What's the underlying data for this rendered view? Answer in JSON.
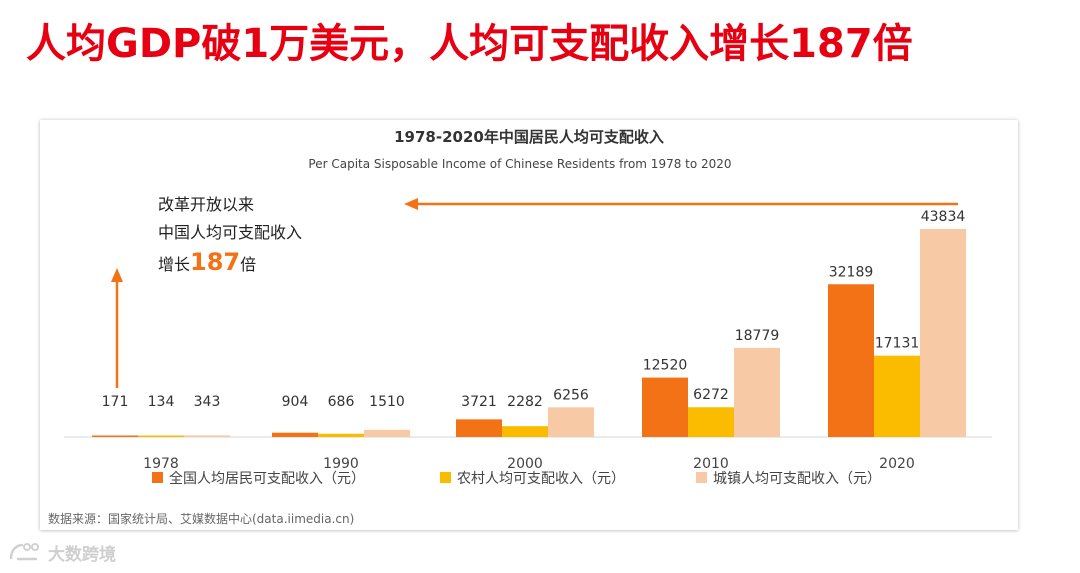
{
  "headline": "人均GDP破1万美元，人均可支配收入增长187倍",
  "colors": {
    "headline": "#e60012",
    "national": "#f47216",
    "rural": "#fbbc00",
    "urban": "#f7c9a5",
    "arrow": "#f47216",
    "emphasis": "#f47216"
  },
  "annotation": {
    "line1": "改革开放以来",
    "line2": "中国人均可支配收入",
    "prefix": "增长",
    "number": "187",
    "suffix": "倍"
  },
  "source": "数据来源：国家统计局、艾媒数据中心(data.iimedia.cn)",
  "watermark": "大数跨境",
  "chart_data": {
    "type": "bar",
    "title": "1978-2020年中国居民人均可支配收入",
    "subtitle": "Per Capita Sisposable Income of Chinese Residents from 1978 to 2020",
    "categories": [
      "1978",
      "1990",
      "2000",
      "2010",
      "2020"
    ],
    "series": [
      {
        "name": "全国人均居民可支配收入（元）",
        "values": [
          171,
          904,
          3721,
          12520,
          32189
        ],
        "color": "#f47216"
      },
      {
        "name": "农村人均可支配收入（元）",
        "values": [
          134,
          686,
          2282,
          6272,
          17131
        ],
        "color": "#fbbc00"
      },
      {
        "name": "城镇人均可支配收入（元）",
        "values": [
          343,
          1510,
          6256,
          18779,
          43834
        ],
        "color": "#f7c9a5"
      }
    ],
    "xlabel": "",
    "ylabel": "",
    "ylim": [
      0,
      43834
    ],
    "grid": false,
    "legend": "bottom"
  }
}
